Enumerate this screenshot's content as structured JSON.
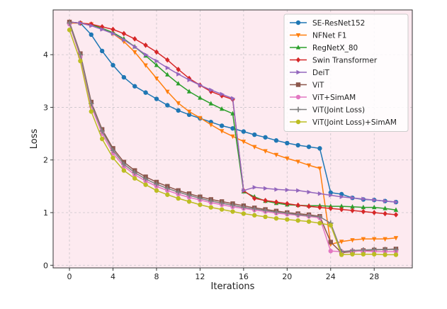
{
  "chart_data": {
    "type": "line",
    "title": "",
    "xlabel": "Iterations",
    "ylabel": "Loss",
    "xlim": [
      -1.5,
      31.5
    ],
    "ylim": [
      -0.05,
      4.85
    ],
    "xticks": [
      0,
      4,
      8,
      12,
      16,
      20,
      24,
      28
    ],
    "yticks": [
      0,
      1,
      2,
      3,
      4
    ],
    "grid": true,
    "legend_position": "top-right",
    "series": [
      {
        "name": "SE-ResNet152",
        "color": "#1f77b4",
        "marker": "circle",
        "x": [
          0,
          1,
          2,
          3,
          4,
          5,
          6,
          7,
          8,
          9,
          10,
          11,
          12,
          13,
          14,
          15,
          16,
          17,
          18,
          19,
          20,
          21,
          22,
          23,
          24,
          25,
          26,
          27,
          28,
          29,
          30
        ],
        "y": [
          4.62,
          4.6,
          4.38,
          4.07,
          3.8,
          3.57,
          3.4,
          3.28,
          3.16,
          3.04,
          2.94,
          2.86,
          2.79,
          2.72,
          2.65,
          2.6,
          2.54,
          2.48,
          2.43,
          2.37,
          2.32,
          2.28,
          2.25,
          2.22,
          1.38,
          1.35,
          1.28,
          1.25,
          1.24,
          1.22,
          1.2
        ]
      },
      {
        "name": "NFNet F1",
        "color": "#ff7f0e",
        "marker": "triangle-down",
        "x": [
          0,
          1,
          2,
          3,
          4,
          5,
          6,
          7,
          8,
          9,
          10,
          11,
          12,
          13,
          14,
          15,
          16,
          17,
          18,
          19,
          20,
          21,
          22,
          23,
          24,
          25,
          26,
          27,
          28,
          29,
          30
        ],
        "y": [
          4.6,
          4.6,
          4.58,
          4.5,
          4.4,
          4.25,
          4.05,
          3.8,
          3.55,
          3.3,
          3.08,
          2.92,
          2.8,
          2.67,
          2.55,
          2.45,
          2.35,
          2.25,
          2.17,
          2.1,
          2.03,
          1.97,
          1.9,
          1.84,
          0.4,
          0.45,
          0.48,
          0.5,
          0.5,
          0.5,
          0.52
        ]
      },
      {
        "name": "RegNetX_80",
        "color": "#2ca02c",
        "marker": "triangle-up",
        "x": [
          0,
          1,
          2,
          3,
          4,
          5,
          6,
          7,
          8,
          9,
          10,
          11,
          12,
          13,
          14,
          15,
          16,
          17,
          18,
          19,
          20,
          21,
          22,
          23,
          24,
          25,
          26,
          27,
          28,
          29,
          30
        ],
        "y": [
          4.62,
          4.6,
          4.57,
          4.5,
          4.42,
          4.3,
          4.15,
          3.98,
          3.8,
          3.62,
          3.45,
          3.3,
          3.18,
          3.07,
          2.97,
          2.88,
          1.4,
          1.3,
          1.22,
          1.18,
          1.15,
          1.14,
          1.13,
          1.13,
          1.12,
          1.12,
          1.11,
          1.1,
          1.1,
          1.08,
          1.05
        ]
      },
      {
        "name": "Swin Transformer",
        "color": "#d62728",
        "marker": "diamond",
        "x": [
          0,
          1,
          2,
          3,
          4,
          5,
          6,
          7,
          8,
          9,
          10,
          11,
          12,
          13,
          14,
          15,
          16,
          17,
          18,
          19,
          20,
          21,
          22,
          23,
          24,
          25,
          26,
          27,
          28,
          29,
          30
        ],
        "y": [
          4.62,
          4.6,
          4.58,
          4.53,
          4.48,
          4.4,
          4.3,
          4.18,
          4.05,
          3.9,
          3.72,
          3.55,
          3.42,
          3.3,
          3.22,
          3.15,
          1.42,
          1.27,
          1.23,
          1.2,
          1.17,
          1.14,
          1.12,
          1.1,
          1.08,
          1.06,
          1.04,
          1.02,
          1.0,
          0.98,
          0.96
        ]
      },
      {
        "name": "DeiT",
        "color": "#9467bd",
        "marker": "triangle-right",
        "x": [
          0,
          1,
          2,
          3,
          4,
          5,
          6,
          7,
          8,
          9,
          10,
          11,
          12,
          13,
          14,
          15,
          16,
          17,
          18,
          19,
          20,
          21,
          22,
          23,
          24,
          25,
          26,
          27,
          28,
          29,
          30
        ],
        "y": [
          4.62,
          4.6,
          4.55,
          4.48,
          4.4,
          4.28,
          4.15,
          4.0,
          3.88,
          3.75,
          3.63,
          3.52,
          3.42,
          3.33,
          3.25,
          3.17,
          1.42,
          1.48,
          1.46,
          1.44,
          1.43,
          1.42,
          1.39,
          1.36,
          1.33,
          1.3,
          1.28,
          1.26,
          1.24,
          1.22,
          1.2
        ]
      },
      {
        "name": "ViT",
        "color": "#8c564b",
        "marker": "square",
        "x": [
          0,
          1,
          2,
          3,
          4,
          5,
          6,
          7,
          8,
          9,
          10,
          11,
          12,
          13,
          14,
          15,
          16,
          17,
          18,
          19,
          20,
          21,
          22,
          23,
          24,
          25,
          26,
          27,
          28,
          29,
          30
        ],
        "y": [
          4.62,
          4.02,
          3.1,
          2.58,
          2.22,
          1.96,
          1.8,
          1.68,
          1.58,
          1.5,
          1.42,
          1.36,
          1.3,
          1.25,
          1.21,
          1.17,
          1.13,
          1.09,
          1.06,
          1.03,
          1.0,
          0.98,
          0.96,
          0.93,
          0.44,
          0.24,
          0.26,
          0.28,
          0.29,
          0.3,
          0.31
        ]
      },
      {
        "name": "ViT+SimAM",
        "color": "#e377c2",
        "marker": "circle",
        "x": [
          0,
          1,
          2,
          3,
          4,
          5,
          6,
          7,
          8,
          9,
          10,
          11,
          12,
          13,
          14,
          15,
          16,
          17,
          18,
          19,
          20,
          21,
          22,
          23,
          24,
          25,
          26,
          27,
          28,
          29,
          30
        ],
        "y": [
          4.58,
          3.96,
          3.02,
          2.5,
          2.13,
          1.88,
          1.72,
          1.6,
          1.5,
          1.42,
          1.35,
          1.29,
          1.24,
          1.19,
          1.15,
          1.11,
          1.08,
          1.05,
          1.02,
          0.99,
          0.97,
          0.95,
          0.93,
          0.9,
          0.27,
          0.26,
          0.27,
          0.27,
          0.26,
          0.26,
          0.26
        ]
      },
      {
        "name": "ViT(Joint Loss)",
        "color": "#7f7f7f",
        "marker": "plus",
        "x": [
          0,
          1,
          2,
          3,
          4,
          5,
          6,
          7,
          8,
          9,
          10,
          11,
          12,
          13,
          14,
          15,
          16,
          17,
          18,
          19,
          20,
          21,
          22,
          23,
          24,
          25,
          26,
          27,
          28,
          29,
          30
        ],
        "y": [
          4.6,
          4.0,
          3.07,
          2.55,
          2.18,
          1.92,
          1.76,
          1.64,
          1.54,
          1.46,
          1.39,
          1.33,
          1.27,
          1.22,
          1.18,
          1.14,
          1.1,
          1.07,
          1.04,
          1.01,
          0.99,
          0.96,
          0.94,
          0.92,
          0.8,
          0.26,
          0.28,
          0.29,
          0.3,
          0.3,
          0.3
        ]
      },
      {
        "name": "ViT(Joint Loss)+SimAM",
        "color": "#bcbd22",
        "marker": "circle",
        "x": [
          0,
          1,
          2,
          3,
          4,
          5,
          6,
          7,
          8,
          9,
          10,
          11,
          12,
          13,
          14,
          15,
          16,
          17,
          18,
          19,
          20,
          21,
          22,
          23,
          24,
          25,
          26,
          27,
          28,
          29,
          30
        ],
        "y": [
          4.47,
          3.88,
          2.92,
          2.4,
          2.04,
          1.8,
          1.65,
          1.53,
          1.42,
          1.34,
          1.27,
          1.21,
          1.15,
          1.1,
          1.06,
          1.02,
          0.98,
          0.95,
          0.92,
          0.89,
          0.87,
          0.85,
          0.83,
          0.8,
          0.76,
          0.2,
          0.21,
          0.21,
          0.21,
          0.2,
          0.2
        ]
      }
    ]
  }
}
